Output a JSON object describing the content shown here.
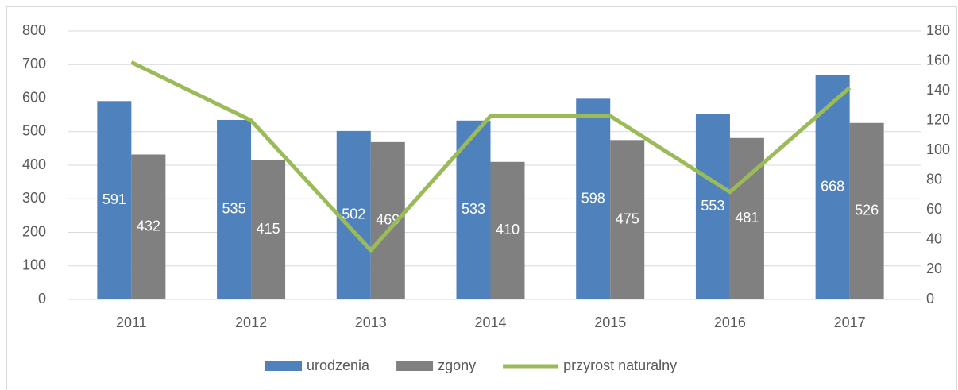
{
  "chart_data": {
    "type": "bar_line",
    "categories": [
      "2011",
      "2012",
      "2013",
      "2014",
      "2015",
      "2016",
      "2017"
    ],
    "series": [
      {
        "name": "urodzenia",
        "color": "#4f81bd",
        "values": [
          591,
          535,
          502,
          533,
          598,
          553,
          668
        ]
      },
      {
        "name": "zgony",
        "color": "#808080",
        "values": [
          432,
          415,
          469,
          410,
          475,
          481,
          526
        ]
      },
      {
        "name": "przyrost naturalny",
        "color": "#9bbb59",
        "axis": "y2",
        "values": [
          159,
          120,
          33,
          123,
          123,
          72,
          142
        ]
      }
    ],
    "ylim": [
      0,
      800
    ],
    "yticks": [
      0,
      100,
      200,
      300,
      400,
      500,
      600,
      700,
      800
    ],
    "y2lim": [
      0,
      180
    ],
    "y2ticks": [
      0,
      20,
      40,
      60,
      80,
      100,
      120,
      140,
      160,
      180
    ],
    "grid": true,
    "legend": "bottom"
  }
}
